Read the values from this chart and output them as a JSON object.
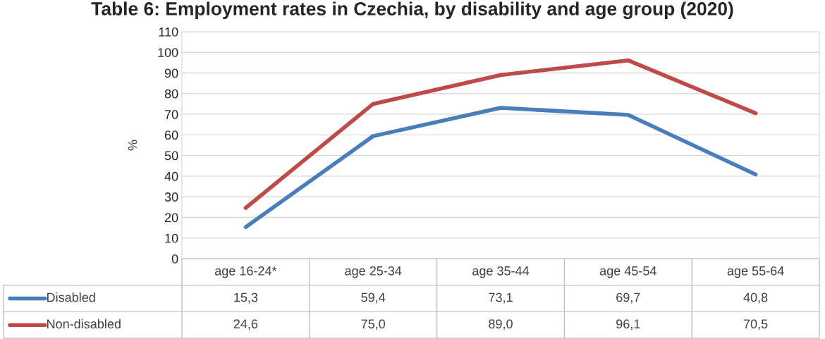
{
  "chart_data": {
    "type": "line",
    "title": "Table 6: Employment rates in Czechia, by disability and age group (2020)",
    "ylabel": "%",
    "categories": [
      "age 16-24*",
      "age 25-34",
      "age 35-44",
      "age 45-54",
      "age 55-64"
    ],
    "series": [
      {
        "name": "Disabled",
        "color": "#4a7ebb",
        "values": [
          15.3,
          59.4,
          73.1,
          69.7,
          40.8
        ],
        "value_labels": [
          "15,3",
          "59,4",
          "73,1",
          "69,7",
          "40,8"
        ]
      },
      {
        "name": "Non-disabled",
        "color": "#be4b48",
        "values": [
          24.6,
          75.0,
          89.0,
          96.1,
          70.5
        ],
        "value_labels": [
          "24,6",
          "75,0",
          "89,0",
          "96,1",
          "70,5"
        ]
      }
    ],
    "ylim": [
      0,
      110
    ],
    "yticks": [
      0,
      10,
      20,
      30,
      40,
      50,
      60,
      70,
      80,
      90,
      100,
      110
    ],
    "grid": "y",
    "legend": "bottom",
    "tick_labels": "y",
    "marker": "none",
    "line_style": "solid"
  }
}
